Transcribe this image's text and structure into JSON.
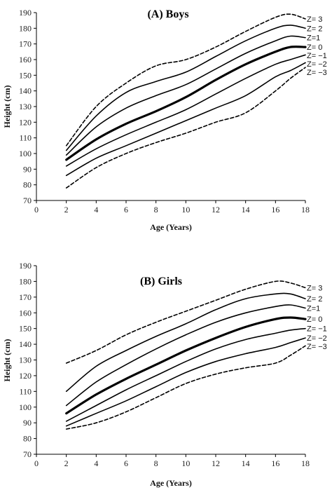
{
  "chart_data": [
    {
      "type": "line",
      "title": "(A) Boys",
      "xlabel": "Age (Years)",
      "ylabel": "Height (cm)",
      "xlim": [
        0,
        18
      ],
      "ylim": [
        70,
        190
      ],
      "xticks": [
        0,
        2,
        4,
        6,
        8,
        10,
        12,
        14,
        16,
        18
      ],
      "yticks": [
        70,
        80,
        90,
        100,
        110,
        120,
        130,
        140,
        150,
        160,
        170,
        180,
        190
      ],
      "grid": false,
      "x": [
        2,
        4,
        6,
        8,
        10,
        12,
        14,
        16,
        17,
        18
      ],
      "series": [
        {
          "name": "Z= 3",
          "style": "dashed",
          "values": [
            105,
            130,
            145,
            156,
            160,
            168,
            178,
            187,
            189,
            186
          ]
        },
        {
          "name": "Z= 2",
          "style": "solid",
          "values": [
            102,
            124,
            139,
            146,
            152,
            162,
            172,
            180,
            182,
            180
          ]
        },
        {
          "name": "Z=1",
          "style": "solid",
          "values": [
            99,
            117,
            129,
            137,
            144,
            154,
            164,
            172,
            175,
            174
          ]
        },
        {
          "name": "Z= 0",
          "style": "bold",
          "values": [
            96,
            109,
            119,
            127,
            136,
            147,
            157,
            165,
            168,
            168
          ]
        },
        {
          "name": "Z= −1",
          "style": "solid",
          "values": [
            92,
            103,
            112,
            120,
            128,
            138,
            148,
            157,
            160,
            163
          ]
        },
        {
          "name": "Z= −2",
          "style": "solid",
          "values": [
            86,
            97,
            105,
            113,
            121,
            129,
            137,
            149,
            153,
            158
          ]
        },
        {
          "name": "Z= −3",
          "style": "dashed",
          "values": [
            78,
            91,
            100,
            107,
            113,
            120,
            126,
            140,
            148,
            155
          ]
        }
      ]
    },
    {
      "type": "line",
      "title": "(B) Girls",
      "xlabel": "Age (Years)",
      "ylabel": "Height (cm)",
      "xlim": [
        0,
        18
      ],
      "ylim": [
        70,
        190
      ],
      "xticks": [
        0,
        2,
        4,
        6,
        8,
        10,
        12,
        14,
        16,
        18
      ],
      "yticks": [
        70,
        80,
        90,
        100,
        110,
        120,
        130,
        140,
        150,
        160,
        170,
        180,
        190
      ],
      "grid": false,
      "x": [
        2,
        4,
        6,
        8,
        10,
        12,
        14,
        16,
        17,
        18
      ],
      "series": [
        {
          "name": "Z= 3",
          "style": "dashed",
          "values": [
            128,
            136,
            146,
            154,
            161,
            168,
            175,
            180,
            179,
            176
          ]
        },
        {
          "name": "Z= 2",
          "style": "solid",
          "values": [
            110,
            126,
            136,
            145,
            153,
            162,
            169,
            172,
            172,
            169
          ]
        },
        {
          "name": "Z=1",
          "style": "solid",
          "values": [
            101,
            116,
            127,
            137,
            146,
            154,
            160,
            164,
            165,
            163
          ]
        },
        {
          "name": "Z= 0",
          "style": "bold",
          "values": [
            96,
            108,
            118,
            127,
            136,
            144,
            151,
            156,
            157,
            156
          ]
        },
        {
          "name": "Z= −1",
          "style": "solid",
          "values": [
            91,
            101,
            111,
            120,
            129,
            137,
            143,
            147,
            149,
            150
          ]
        },
        {
          "name": "Z= −2",
          "style": "solid",
          "values": [
            88,
            96,
            104,
            113,
            122,
            129,
            134,
            138,
            141,
            144
          ]
        },
        {
          "name": "Z= −3",
          "style": "dashed",
          "values": [
            86,
            90,
            97,
            106,
            115,
            121,
            125,
            128,
            133,
            139
          ]
        }
      ]
    }
  ]
}
